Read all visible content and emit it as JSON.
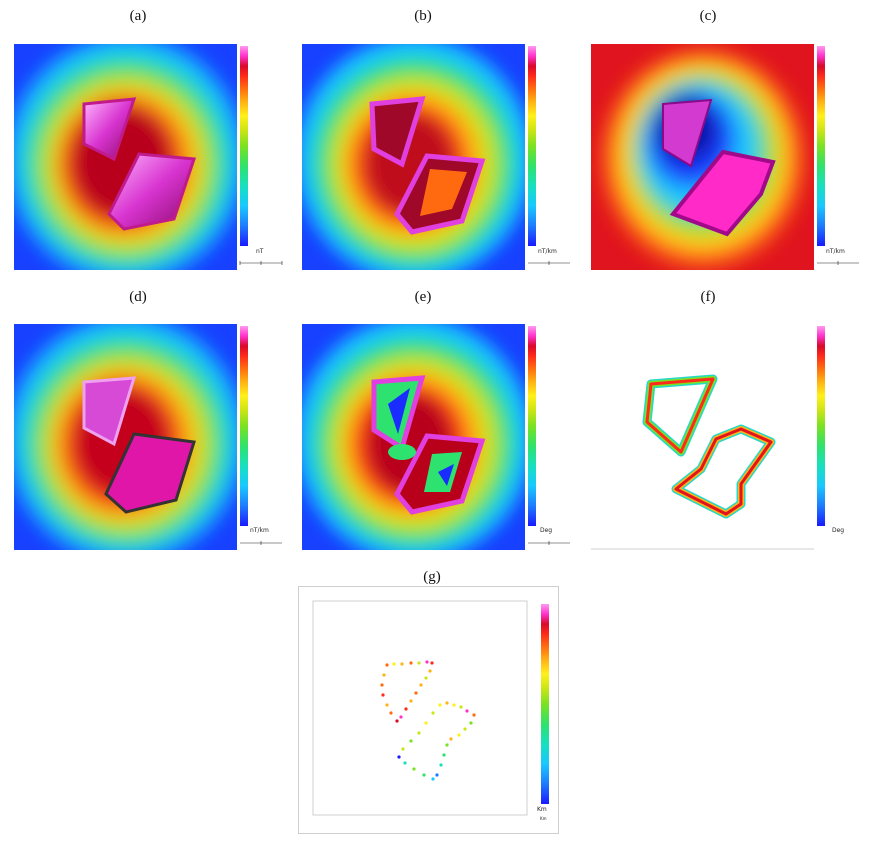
{
  "figure": {
    "panels": [
      {
        "id": "a",
        "label": "(a)",
        "unit": "nT"
      },
      {
        "id": "b",
        "label": "(b)",
        "unit": "nT/km"
      },
      {
        "id": "c",
        "label": "(c)",
        "unit": "nT/km"
      },
      {
        "id": "d",
        "label": "(d)",
        "unit": "nT/km"
      },
      {
        "id": "e",
        "label": "(e)",
        "unit": "Deg"
      },
      {
        "id": "f",
        "label": "(f)",
        "unit": "Deg"
      },
      {
        "id": "g",
        "label": "(g)",
        "unit": "Km"
      }
    ],
    "colorbar_colors": [
      "#1a1aff",
      "#1e7bff",
      "#19c8ff",
      "#17e0c0",
      "#2ee26b",
      "#7be221",
      "#cde516",
      "#fff01a",
      "#ffb314",
      "#ff6a0f",
      "#ff2a1a",
      "#d80a2a",
      "#e8199a",
      "#ff33cc",
      "#ff99ee"
    ],
    "scale_bar_text": "Km"
  }
}
